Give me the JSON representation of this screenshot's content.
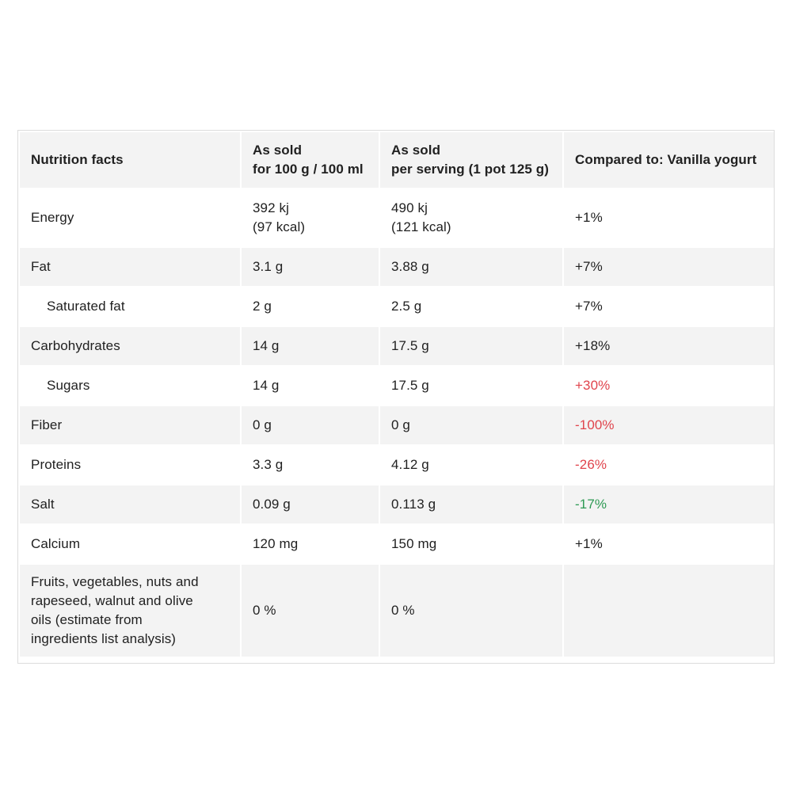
{
  "table": {
    "headers": {
      "nutrient": "Nutrition facts",
      "per100_line1": "As sold",
      "per100_line2": "for 100 g / 100 ml",
      "serving_line1": "As sold",
      "serving_line2": "per serving (1 pot 125 g)",
      "compared": "Compared to: Vanilla yogurt"
    },
    "rows": [
      {
        "name": "Energy",
        "per100_l1": "392 kj",
        "per100_l2": "(97 kcal)",
        "serving_l1": "490 kj",
        "serving_l2": "(121 kcal)",
        "compare": "+1%",
        "compare_color": "#212121"
      },
      {
        "name": "Fat",
        "per100": "3.1 g",
        "serving": "3.88 g",
        "compare": "+7%",
        "compare_color": "#212121"
      },
      {
        "name": "Saturated fat",
        "per100": "2 g",
        "serving": "2.5 g",
        "compare": "+7%",
        "compare_color": "#212121"
      },
      {
        "name": "Carbohydrates",
        "per100": "14 g",
        "serving": "17.5 g",
        "compare": "+18%",
        "compare_color": "#212121"
      },
      {
        "name": "Sugars",
        "per100": "14 g",
        "serving": "17.5 g",
        "compare": "+30%",
        "compare_color": "#e0444c"
      },
      {
        "name": "Fiber",
        "per100": "0 g",
        "serving": "0 g",
        "compare": "-100%",
        "compare_color": "#e0444c"
      },
      {
        "name": "Proteins",
        "per100": "3.3 g",
        "serving": "4.12 g",
        "compare": "-26%",
        "compare_color": "#e0444c"
      },
      {
        "name": "Salt",
        "per100": "0.09 g",
        "serving": "0.113 g",
        "compare": "-17%",
        "compare_color": "#2e9a54"
      },
      {
        "name": "Calcium",
        "per100": "120 mg",
        "serving": "150 mg",
        "compare": "+1%",
        "compare_color": "#212121"
      },
      {
        "name_l1": "Fruits, vegetables, nuts and",
        "name_l2": "rapeseed, walnut and olive",
        "name_l3": "oils (estimate from",
        "name_l4": "ingredients list analysis)",
        "per100": "0 %",
        "serving": "0 %",
        "compare": ""
      }
    ]
  }
}
